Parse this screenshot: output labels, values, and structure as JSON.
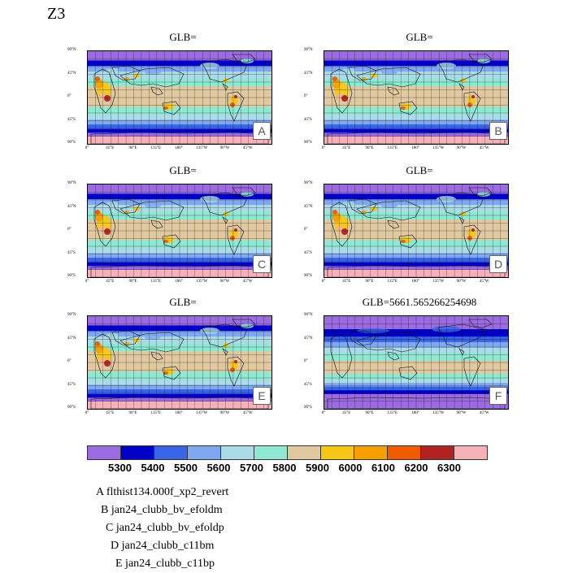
{
  "figure_title": "Z3",
  "panels": [
    {
      "title": "GLB=",
      "tag": "A"
    },
    {
      "title": "GLB=",
      "tag": "B"
    },
    {
      "title": "GLB=",
      "tag": "C"
    },
    {
      "title": "GLB=",
      "tag": "D"
    },
    {
      "title": "GLB=",
      "tag": "E"
    },
    {
      "title": "GLB=5661.565266254698",
      "tag": "F"
    }
  ],
  "lat_labels": [
    "90°N",
    "45°N",
    "0°",
    "45°S",
    "90°S"
  ],
  "lon_labels": [
    "0°",
    "45°E",
    "90°E",
    "135°E",
    "180°",
    "135°W",
    "90°W",
    "45°W"
  ],
  "colorbar": {
    "colors": [
      "#9b6be0",
      "#0000c8",
      "#3a64e6",
      "#7fa8ee",
      "#aadbe6",
      "#8ee8d2",
      "#e0c8a0",
      "#f5c817",
      "#f5a000",
      "#f05a00",
      "#b22222",
      "#f5b0b8"
    ],
    "labels": [
      "5300",
      "5400",
      "5500",
      "5600",
      "5700",
      "5800",
      "5900",
      "6000",
      "6100",
      "6200",
      "6300"
    ]
  },
  "legend": [
    {
      "tag": "A",
      "name": "flthist134.000f_xp2_revert"
    },
    {
      "tag": "B",
      "name": "jan24_clubb_bv_efoldm"
    },
    {
      "tag": "C",
      "name": "jan24_clubb_bv_efoldp"
    },
    {
      "tag": "D",
      "name": "jan24_clubb_c11bm"
    },
    {
      "tag": "E",
      "name": "jan24_clubb_c11bp"
    }
  ]
}
